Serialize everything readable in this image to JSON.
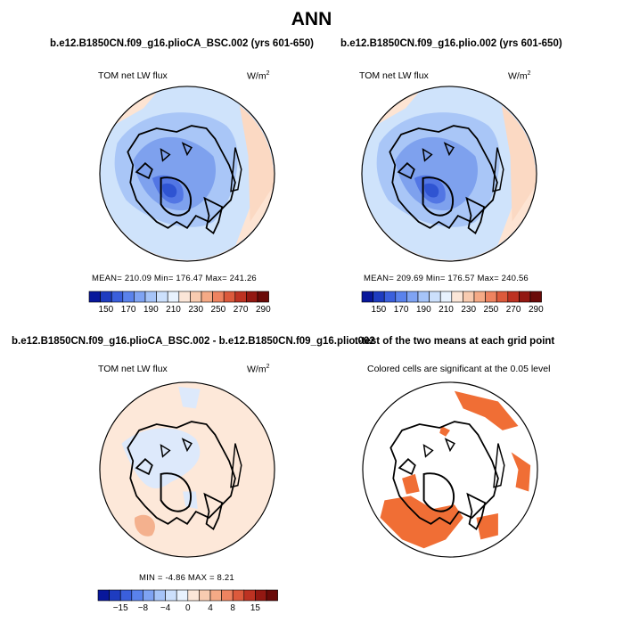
{
  "main_title": "ANN",
  "panels": [
    {
      "title": "b.e12.B1850CN.f09_g16.plioCA_BSC.002 (yrs 601-650)",
      "left_label": "TOM net LW flux",
      "units": "W/m",
      "units_sup": "2",
      "stats": "MEAN= 210.09   Min= 176.47   Max= 241.26"
    },
    {
      "title": "b.e12.B1850CN.f09_g16.plio.002 (yrs 601-650)",
      "left_label": "TOM net LW flux",
      "units": "W/m",
      "units_sup": "2",
      "stats": "MEAN= 209.69   Min= 176.57   Max= 240.56"
    },
    {
      "title": "b.e12.B1850CN.f09_g16.plioCA_BSC.002 - b.e12.B1850CN.f09_g16.plio.002",
      "left_label": "TOM net LW flux",
      "units": "W/m",
      "units_sup": "2",
      "stats": "MIN =   -4.86  MAX =     8.21"
    },
    {
      "title": "t-test of the two means at each grid point",
      "left_label": "Colored cells are significant at the 0.05 level"
    }
  ],
  "chart_data": [
    {
      "type": "heatmap",
      "title": "b.e12.B1850CN.f09_g16.plioCA_BSC.002 (yrs 601-650)",
      "field": "TOM net LW flux",
      "units": "W/m2",
      "projection": "polar stereographic (north pole)",
      "mean": 210.09,
      "min": 176.47,
      "max": 241.26,
      "colorbar": {
        "labels": [
          "150",
          "170",
          "190",
          "210",
          "230",
          "250",
          "270",
          "290"
        ],
        "colors": [
          "#08179b",
          "#1e3cc0",
          "#3a5fdc",
          "#5a82ec",
          "#7fa3f3",
          "#a6c4f8",
          "#cce0fc",
          "#e8f2fe",
          "#fbe6d8",
          "#f8cbb0",
          "#f5aa86",
          "#ee8360",
          "#dc5a3c",
          "#bd3222",
          "#931812",
          "#6a0a08"
        ]
      }
    },
    {
      "type": "heatmap",
      "title": "b.e12.B1850CN.f09_g16.plio.002 (yrs 601-650)",
      "field": "TOM net LW flux",
      "units": "W/m2",
      "projection": "polar stereographic (north pole)",
      "mean": 209.69,
      "min": 176.57,
      "max": 240.56,
      "colorbar": {
        "labels": [
          "150",
          "170",
          "190",
          "210",
          "230",
          "250",
          "270",
          "290"
        ]
      }
    },
    {
      "type": "heatmap",
      "title": "b.e12.B1850CN.f09_g16.plioCA_BSC.002 - b.e12.B1850CN.f09_g16.plio.002",
      "field": "TOM net LW flux",
      "units": "W/m2",
      "projection": "polar stereographic (north pole)",
      "min": -4.86,
      "max": 8.21,
      "colorbar": {
        "labels": [
          "-15",
          "-8",
          "-4",
          "0",
          "4",
          "8",
          "15"
        ]
      }
    },
    {
      "type": "heatmap",
      "title": "t-test of the two means at each grid point",
      "note": "Colored cells are significant at the 0.05 level",
      "projection": "polar stereographic (north pole)",
      "significant_color": "#f06e35"
    }
  ]
}
